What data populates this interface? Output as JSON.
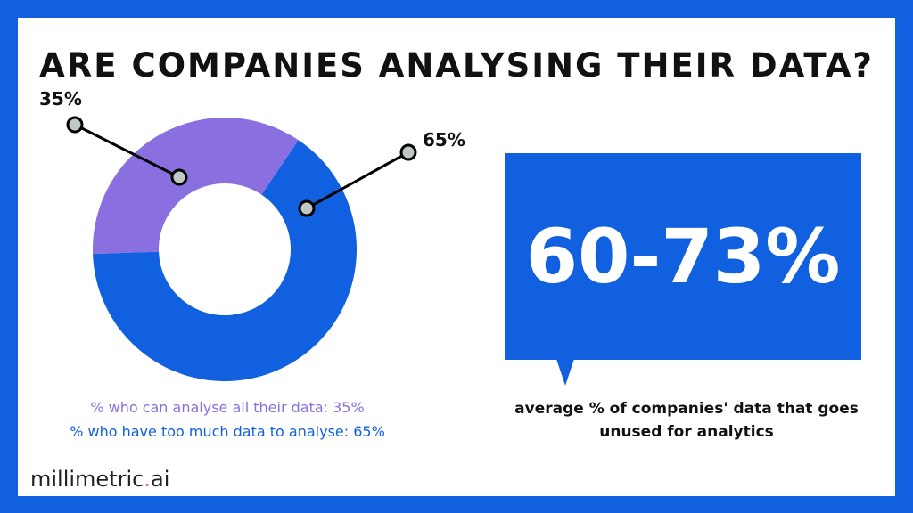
{
  "title": "Are companies analysing their data?",
  "chart_data": {
    "type": "pie",
    "variant": "donut",
    "title": "Are companies analysing their data?",
    "slices": [
      {
        "label": "% who can analyse all their data",
        "value": 35,
        "data_label": "35%",
        "color": "#8a6fe0"
      },
      {
        "label": "% who have too much data to analyse",
        "value": 65,
        "data_label": "65%",
        "color": "#1060e0"
      }
    ],
    "legend": [
      "% who can analyse all their data: 35%",
      "% who have too much data to analyse: 65%"
    ]
  },
  "callout": {
    "value": "60-73%",
    "caption_line1": "average % of companies' data that goes",
    "caption_line2": "unused for analytics"
  },
  "logo": {
    "text_before": "millimetric",
    "dot": ".",
    "text_after": "ai"
  },
  "colors": {
    "frame": "#1060e0",
    "purple": "#8a6fe0",
    "blue": "#1060e0"
  }
}
